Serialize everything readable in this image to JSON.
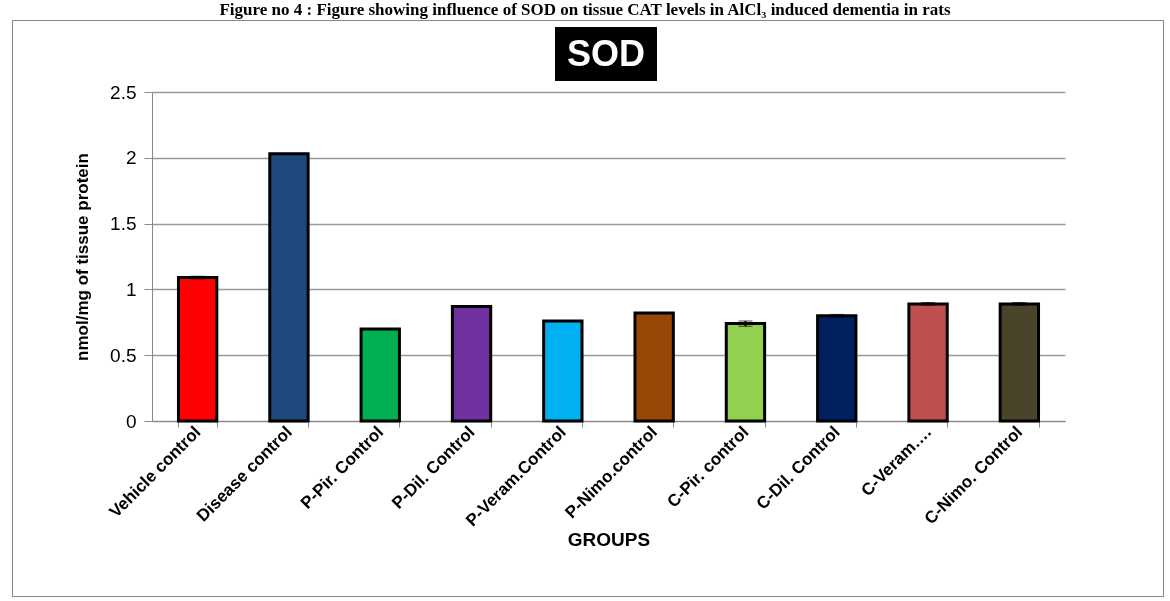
{
  "chart_data": {
    "type": "bar",
    "title": "SOD",
    "annotations": [
      "Figure no 4 : Figure showing influence of SOD on tissue CAT levels in AlCl₃ induced dementia in rats"
    ],
    "xlabel": "GROUPS",
    "ylabel": "nmol/mg of tissue protein",
    "categories": [
      "Vehicle control",
      "Disease control",
      "P-Pir. Control",
      "P-Dil. Control",
      "P-Veram.Control",
      "P-Nimo.control",
      "C-Pir. control",
      "C-Dil. Control",
      "C-Veram….",
      "C-Nimo. Control"
    ],
    "values": [
      1.09,
      2.03,
      0.7,
      0.87,
      0.76,
      0.82,
      0.74,
      0.8,
      0.89,
      0.89
    ],
    "errors": [
      0.01,
      null,
      null,
      null,
      null,
      null,
      0.02,
      0.01,
      0.01,
      0.01
    ],
    "colors": [
      "#ff0000",
      "#1f497d",
      "#00b050",
      "#7030a0",
      "#00b0f0",
      "#974706",
      "#92d050",
      "#002060",
      "#c0504d",
      "#4a452a"
    ],
    "ylim": [
      0,
      2.5
    ],
    "yticks": [
      0,
      0.5,
      1,
      1.5,
      2,
      2.5
    ],
    "grid": "y",
    "legend": false
  }
}
